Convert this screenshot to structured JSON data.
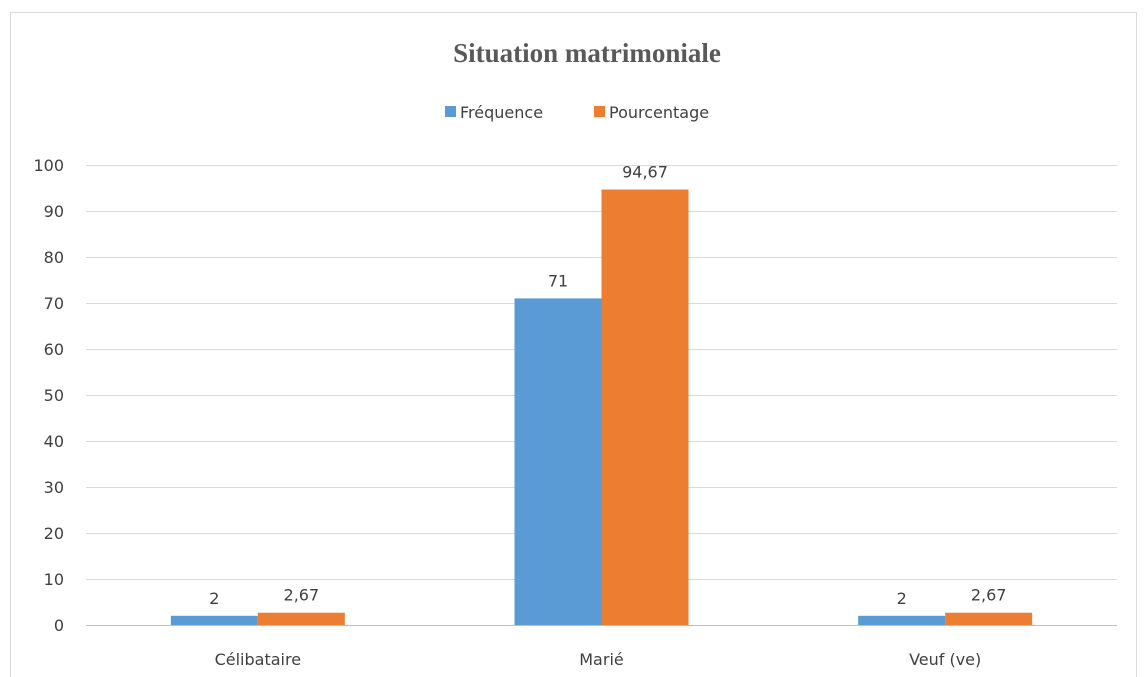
{
  "chart_data": {
    "type": "bar",
    "title": "Situation matrimoniale",
    "categories": [
      "Célibataire",
      "Marié",
      "Veuf (ve)"
    ],
    "series": [
      {
        "name": "Fréquence",
        "values": [
          2,
          71,
          2
        ],
        "labels": [
          "2",
          "71",
          "2"
        ],
        "color": "#5b9bd5"
      },
      {
        "name": "Pourcentage",
        "values": [
          2.67,
          94.67,
          2.67
        ],
        "labels": [
          "2,67",
          "94,67",
          "2,67"
        ],
        "color": "#ed7d31"
      }
    ],
    "ylim": [
      0,
      100
    ],
    "yticks": [
      "0",
      "10",
      "20",
      "30",
      "40",
      "50",
      "60",
      "70",
      "80",
      "90",
      "100"
    ],
    "xlabel": "",
    "ylabel": "",
    "grid": true,
    "legend_position": "top"
  }
}
